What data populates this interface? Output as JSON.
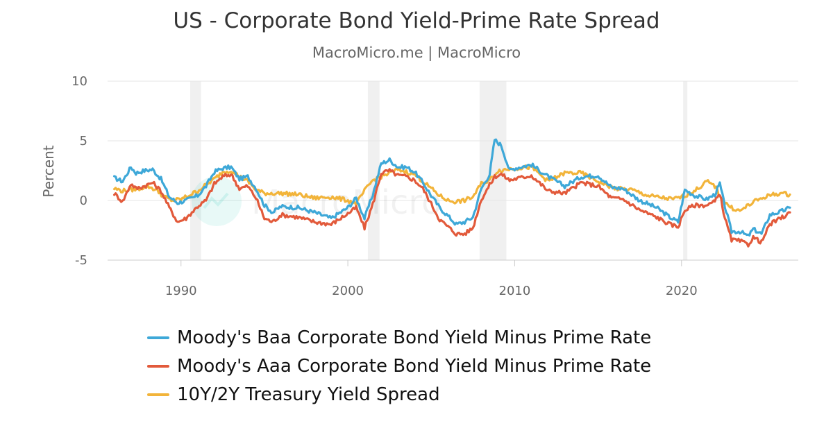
{
  "chart_data": {
    "type": "line",
    "title": "US - Corporate Bond Yield-Prime Rate Spread",
    "subtitle": "MacroMicro.me | MacroMicro",
    "watermark": "MacroMicro",
    "xlabel": "",
    "ylabel": "Percent",
    "xlim": [
      1985.6,
      2027.0
    ],
    "ylim": [
      -5,
      10
    ],
    "x_ticks": [
      1990,
      2000,
      2010,
      2020
    ],
    "y_ticks": [
      10,
      5,
      0,
      -5
    ],
    "grid": true,
    "legend_position": "bottom",
    "recession_periods": [
      [
        1990.55,
        1991.2
      ],
      [
        2001.2,
        2001.9
      ],
      [
        2007.9,
        2009.5
      ],
      [
        2020.1,
        2020.35
      ]
    ],
    "series": [
      {
        "name": "Moody's Baa Corporate Bond Yield Minus Prime Rate",
        "color": "#3ea8d8",
        "x": [
          1986.0,
          1986.5,
          1987.0,
          1987.3,
          1987.8,
          1988.3,
          1988.8,
          1989.3,
          1989.8,
          1990.3,
          1991.0,
          1991.5,
          1992.0,
          1992.5,
          1993.0,
          1993.5,
          1994.0,
          1994.5,
          1995.0,
          1995.5,
          1996.0,
          1997.0,
          1998.0,
          1999.0,
          2000.0,
          2000.5,
          2001.0,
          2001.5,
          2002.0,
          2002.5,
          2003.0,
          2003.5,
          2004.0,
          2004.5,
          2005.0,
          2005.5,
          2006.0,
          2006.5,
          2007.0,
          2007.5,
          2008.0,
          2008.5,
          2008.8,
          2009.2,
          2009.7,
          2010.0,
          2011.0,
          2012.0,
          2013.0,
          2014.0,
          2015.0,
          2015.8,
          2016.5,
          2017.5,
          2018.5,
          2019.3,
          2019.8,
          2020.2,
          2020.8,
          2021.5,
          2022.0,
          2022.3,
          2022.6,
          2023.0,
          2023.5,
          2024.0,
          2024.3,
          2024.8,
          2025.3,
          2025.8,
          2026.2,
          2026.5
        ],
        "values": [
          1.9,
          1.6,
          2.8,
          2.3,
          2.5,
          2.6,
          1.8,
          0.3,
          -0.2,
          0.0,
          0.4,
          1.2,
          2.4,
          2.7,
          2.8,
          1.8,
          2.0,
          1.0,
          -0.4,
          -1.0,
          -0.5,
          -0.6,
          -1.0,
          -1.5,
          -0.6,
          0.2,
          -1.5,
          0.5,
          3.1,
          3.4,
          2.8,
          2.8,
          2.4,
          1.5,
          0.4,
          -0.6,
          -1.3,
          -2.0,
          -1.8,
          -1.4,
          1.0,
          2.2,
          5.1,
          4.6,
          2.5,
          2.7,
          3.0,
          2.0,
          1.2,
          2.0,
          2.1,
          1.1,
          1.0,
          0.0,
          -0.6,
          -1.4,
          -1.8,
          0.9,
          0.4,
          0.1,
          0.5,
          1.4,
          -0.5,
          -2.6,
          -2.6,
          -3.0,
          -2.4,
          -2.8,
          -1.2,
          -1.0,
          -0.8,
          -0.6
        ]
      },
      {
        "name": "Moody's Aaa Corporate Bond Yield Minus Prime Rate",
        "color": "#e25a3b",
        "x": [
          1986.0,
          1986.5,
          1987.0,
          1987.3,
          1987.8,
          1988.3,
          1988.8,
          1989.3,
          1989.8,
          1990.3,
          1991.0,
          1991.5,
          1992.0,
          1992.5,
          1993.0,
          1993.5,
          1994.0,
          1994.5,
          1995.0,
          1995.5,
          1996.0,
          1997.0,
          1998.0,
          1999.0,
          2000.0,
          2000.5,
          2001.0,
          2001.5,
          2002.0,
          2002.5,
          2003.0,
          2003.5,
          2004.0,
          2004.5,
          2005.0,
          2005.5,
          2006.0,
          2006.5,
          2007.0,
          2007.5,
          2008.0,
          2008.5,
          2008.8,
          2009.2,
          2009.7,
          2010.0,
          2011.0,
          2012.0,
          2013.0,
          2014.0,
          2015.0,
          2015.8,
          2016.5,
          2017.5,
          2018.5,
          2019.3,
          2019.8,
          2020.2,
          2020.8,
          2021.5,
          2022.0,
          2022.3,
          2022.6,
          2023.0,
          2023.5,
          2024.0,
          2024.3,
          2024.8,
          2025.3,
          2025.8,
          2026.2,
          2026.5
        ],
        "values": [
          0.6,
          -0.1,
          1.4,
          1.0,
          1.2,
          1.5,
          0.8,
          -0.6,
          -1.8,
          -1.5,
          -0.5,
          0.0,
          1.4,
          2.0,
          2.2,
          1.0,
          1.2,
          0.2,
          -1.5,
          -1.8,
          -1.2,
          -1.4,
          -1.8,
          -2.0,
          -1.1,
          -0.6,
          -2.3,
          -0.3,
          2.3,
          2.5,
          2.1,
          2.0,
          1.7,
          1.0,
          -0.3,
          -1.6,
          -2.2,
          -2.8,
          -2.8,
          -2.3,
          0.1,
          1.3,
          2.0,
          2.2,
          1.7,
          1.8,
          2.1,
          0.8,
          0.6,
          1.5,
          1.2,
          0.2,
          0.1,
          -0.8,
          -1.4,
          -2.0,
          -2.2,
          -0.8,
          -0.4,
          -0.4,
          -0.1,
          0.6,
          -1.5,
          -3.3,
          -3.4,
          -3.7,
          -3.1,
          -3.5,
          -2.0,
          -1.6,
          -1.3,
          -1.0
        ]
      },
      {
        "name": "10Y/2Y Treasury Yield Spread",
        "color": "#f2b43a",
        "x": [
          1986.0,
          1986.5,
          1987.0,
          1987.5,
          1988.0,
          1988.5,
          1989.0,
          1989.5,
          1990.0,
          1991.0,
          1992.0,
          1992.5,
          1993.0,
          1993.5,
          1994.0,
          1994.5,
          1995.0,
          1996.0,
          1997.0,
          1998.0,
          1999.0,
          2000.0,
          2000.5,
          2001.0,
          2001.5,
          2002.0,
          2002.5,
          2003.0,
          2003.5,
          2004.0,
          2004.5,
          2005.0,
          2005.5,
          2006.0,
          2006.5,
          2007.0,
          2007.5,
          2008.0,
          2008.5,
          2009.0,
          2010.0,
          2011.0,
          2012.0,
          2013.0,
          2014.0,
          2015.0,
          2016.0,
          2017.0,
          2018.0,
          2019.0,
          2019.5,
          2020.0,
          2020.5,
          2021.0,
          2021.5,
          2022.0,
          2022.3,
          2022.7,
          2023.0,
          2023.5,
          2024.0,
          2024.5,
          2025.0,
          2025.5,
          2026.0,
          2026.5
        ],
        "values": [
          1.0,
          0.8,
          0.9,
          1.0,
          1.2,
          0.9,
          0.3,
          0.0,
          0.1,
          0.8,
          1.8,
          2.4,
          2.5,
          2.0,
          1.6,
          0.9,
          0.6,
          0.6,
          0.5,
          0.2,
          0.3,
          0.0,
          -0.3,
          0.8,
          1.7,
          2.0,
          2.3,
          2.6,
          2.4,
          2.2,
          1.6,
          1.0,
          0.4,
          0.0,
          -0.1,
          0.0,
          0.3,
          1.4,
          1.7,
          2.5,
          2.7,
          2.8,
          1.6,
          2.3,
          2.3,
          1.6,
          1.0,
          0.9,
          0.4,
          0.2,
          0.1,
          0.3,
          0.6,
          1.0,
          1.6,
          1.2,
          0.4,
          -0.3,
          -0.6,
          -0.9,
          -0.4,
          0.0,
          0.3,
          0.5,
          0.6,
          0.5
        ]
      }
    ]
  }
}
